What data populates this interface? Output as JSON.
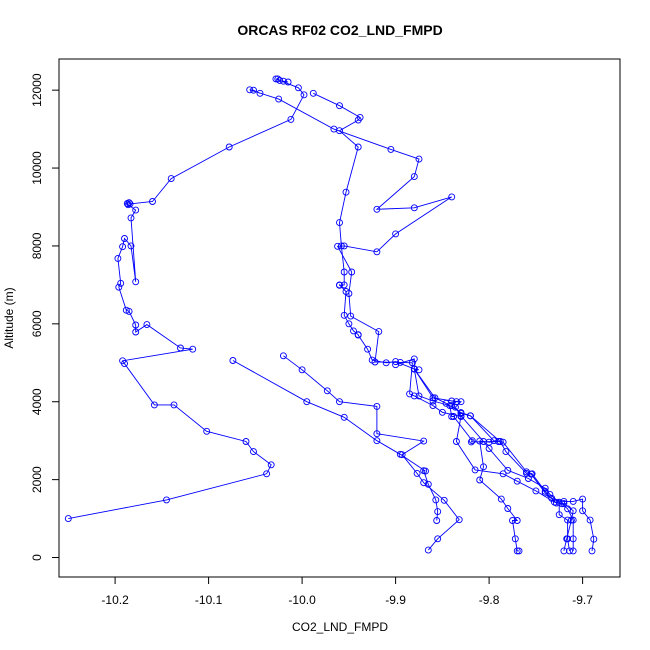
{
  "chart_data": {
    "type": "line",
    "title": "ORCAS RF02 CO2_LND_FMPD",
    "xlabel": "CO2_LND_FMPD",
    "ylabel": "Altitude (m)",
    "xlim": [
      -10.26,
      -9.66
    ],
    "ylim": [
      -500,
      12800
    ],
    "x_ticks": [
      -10.2,
      -10.1,
      -10.0,
      -9.9,
      -9.8,
      -9.7
    ],
    "x_tick_labels": [
      "-10.2",
      "-10.1",
      "-10.0",
      "-9.9",
      "-9.8",
      "-9.7"
    ],
    "y_ticks": [
      0,
      2000,
      4000,
      6000,
      8000,
      10000,
      12000
    ],
    "y_tick_labels": [
      "0",
      "2000",
      "4000",
      "6000",
      "8000",
      "10000",
      "12000"
    ],
    "grid": false,
    "colors": {
      "series": "#0000ff",
      "axis": "#000000"
    },
    "series": [
      {
        "points": [
          [
            -10.25,
            1000
          ],
          [
            -10.145,
            1480
          ],
          [
            -10.038,
            2150
          ],
          [
            -10.033,
            2380
          ],
          [
            -10.052,
            2720
          ],
          [
            -10.06,
            2980
          ],
          [
            -10.102,
            3240
          ],
          [
            -10.137,
            3920
          ],
          [
            -10.158,
            3920
          ],
          [
            -10.19,
            4980
          ],
          [
            -10.192,
            5050
          ],
          [
            -10.117,
            5350
          ],
          [
            -10.13,
            5380
          ],
          [
            -10.166,
            5980
          ],
          [
            -10.178,
            5790
          ],
          [
            -10.178,
            5970
          ],
          [
            -10.185,
            6320
          ],
          [
            -10.188,
            6350
          ],
          [
            -10.196,
            6940
          ],
          [
            -10.194,
            7040
          ],
          [
            -10.197,
            7680
          ],
          [
            -10.192,
            7980
          ],
          [
            -10.19,
            8190
          ],
          [
            -10.183,
            8000
          ],
          [
            -10.178,
            7080
          ],
          [
            -10.183,
            8720
          ],
          [
            -10.178,
            8920
          ],
          [
            -10.186,
            9060
          ],
          [
            -10.187,
            9090
          ],
          [
            -10.185,
            9110
          ],
          [
            -10.184,
            9080
          ],
          [
            -10.16,
            9140
          ],
          [
            -10.14,
            9730
          ],
          [
            -10.078,
            10540
          ],
          [
            -10.012,
            11250
          ],
          [
            -9.998,
            11880
          ],
          [
            -10.004,
            12060
          ],
          [
            -10.028,
            12290
          ],
          [
            -10.026,
            12290
          ],
          [
            -10.024,
            12250
          ],
          [
            -10.02,
            12230
          ],
          [
            -10.015,
            12210
          ]
        ]
      },
      {
        "points": [
          [
            -9.865,
            190
          ],
          [
            -9.855,
            480
          ],
          [
            -9.832,
            970
          ],
          [
            -9.848,
            1470
          ],
          [
            -9.87,
            1920
          ],
          [
            -9.877,
            2160
          ],
          [
            -9.893,
            2640
          ],
          [
            -9.87,
            2990
          ],
          [
            -9.92,
            3180
          ],
          [
            -9.92,
            3880
          ],
          [
            -9.96,
            4000
          ],
          [
            -9.973,
            4280
          ],
          [
            -10.0,
            4820
          ],
          [
            -10.02,
            5180
          ]
        ]
      },
      {
        "points": [
          [
            -9.856,
            950
          ],
          [
            -9.855,
            1180
          ],
          [
            -9.857,
            1480
          ],
          [
            -9.865,
            1880
          ],
          [
            -9.87,
            2230
          ],
          [
            -9.868,
            2220
          ],
          [
            -9.895,
            2650
          ],
          [
            -9.92,
            3000
          ],
          [
            -9.955,
            3600
          ],
          [
            -9.995,
            4000
          ],
          [
            -10.074,
            5060
          ]
        ]
      },
      {
        "points": [
          [
            -9.768,
            170
          ],
          [
            -9.77,
            170
          ],
          [
            -9.772,
            480
          ],
          [
            -9.775,
            950
          ],
          [
            -9.77,
            950
          ],
          [
            -9.78,
            1260
          ],
          [
            -9.787,
            1500
          ],
          [
            -9.81,
            1990
          ],
          [
            -9.806,
            2330
          ],
          [
            -9.81,
            2990
          ],
          [
            -9.8,
            2960
          ],
          [
            -9.79,
            2980
          ],
          [
            -9.819,
            2970
          ],
          [
            -9.818,
            3000
          ],
          [
            -9.838,
            3620
          ],
          [
            -9.84,
            3620
          ],
          [
            -9.842,
            3900
          ],
          [
            -9.86,
            4020
          ],
          [
            -9.875,
            4150
          ],
          [
            -9.88,
            4840
          ],
          [
            -9.9,
            5030
          ],
          [
            -9.91,
            5000
          ],
          [
            -9.925,
            5070
          ],
          [
            -9.93,
            5350
          ],
          [
            -9.94,
            5710
          ],
          [
            -9.94,
            5720
          ],
          [
            -9.945,
            5820
          ],
          [
            -9.95,
            6000
          ],
          [
            -9.955,
            6220
          ],
          [
            -9.953,
            6830
          ],
          [
            -9.96,
            7000
          ],
          [
            -9.96,
            6990
          ],
          [
            -9.955,
            7000
          ],
          [
            -9.955,
            7330
          ],
          [
            -9.958,
            8000
          ],
          [
            -9.96,
            8600
          ],
          [
            -9.953,
            9380
          ],
          [
            -9.94,
            10540
          ],
          [
            -9.96,
            10960
          ],
          [
            -9.94,
            11230
          ],
          [
            -9.938,
            11300
          ],
          [
            -9.96,
            11600
          ],
          [
            -9.988,
            11920
          ]
        ]
      },
      {
        "points": [
          [
            -9.72,
            170
          ],
          [
            -9.717,
            480
          ],
          [
            -9.712,
            960
          ],
          [
            -9.71,
            1200
          ],
          [
            -9.72,
            1390
          ],
          [
            -9.73,
            1420
          ],
          [
            -9.75,
            1710
          ],
          [
            -9.77,
            1960
          ],
          [
            -9.785,
            2150
          ],
          [
            -9.815,
            2250
          ],
          [
            -9.835,
            2980
          ],
          [
            -9.83,
            3620
          ],
          [
            -9.85,
            3730
          ],
          [
            -9.86,
            3900
          ],
          [
            -9.88,
            4150
          ],
          [
            -9.885,
            4200
          ],
          [
            -9.882,
            5000
          ],
          [
            -9.895,
            5010
          ],
          [
            -9.922,
            5020
          ],
          [
            -9.918,
            5800
          ],
          [
            -9.948,
            6200
          ],
          [
            -9.95,
            6780
          ],
          [
            -9.947,
            7330
          ],
          [
            -9.962,
            7990
          ],
          [
            -9.955,
            8000
          ],
          [
            -9.92,
            7850
          ],
          [
            -9.9,
            8310
          ],
          [
            -9.84,
            9260
          ],
          [
            -9.88,
            8980
          ],
          [
            -9.92,
            8940
          ],
          [
            -9.88,
            9780
          ],
          [
            -9.875,
            10230
          ],
          [
            -9.905,
            10480
          ],
          [
            -9.966,
            11000
          ],
          [
            -10.025,
            11770
          ],
          [
            -10.056,
            12010
          ],
          [
            -10.052,
            12000
          ],
          [
            -10.045,
            11920
          ]
        ]
      },
      {
        "points": [
          [
            -9.69,
            170
          ],
          [
            -9.688,
            470
          ],
          [
            -9.692,
            960
          ],
          [
            -9.7,
            1200
          ],
          [
            -9.7,
            1500
          ],
          [
            -9.71,
            1440
          ],
          [
            -9.72,
            1440
          ],
          [
            -9.733,
            1520
          ],
          [
            -9.74,
            1700
          ],
          [
            -9.754,
            2150
          ],
          [
            -9.76,
            2200
          ],
          [
            -9.785,
            2960
          ],
          [
            -9.795,
            3000
          ],
          [
            -9.82,
            3640
          ],
          [
            -9.83,
            3700
          ],
          [
            -9.84,
            3900
          ],
          [
            -9.835,
            4000
          ],
          [
            -9.86,
            4100
          ],
          [
            -9.88,
            4840
          ],
          [
            -9.88,
            5100
          ],
          [
            -9.9,
            4950
          ]
        ]
      },
      {
        "points": [
          [
            -9.71,
            170
          ],
          [
            -9.71,
            480
          ],
          [
            -9.71,
            960
          ],
          [
            -9.716,
            1250
          ],
          [
            -9.722,
            1380
          ],
          [
            -9.728,
            1400
          ],
          [
            -9.74,
            1660
          ],
          [
            -9.755,
            2140
          ],
          [
            -9.76,
            2160
          ],
          [
            -9.782,
            2720
          ],
          [
            -9.788,
            2980
          ],
          [
            -9.82,
            3640
          ],
          [
            -9.83,
            3720
          ],
          [
            -9.846,
            3960
          ],
          [
            -9.858,
            4100
          ],
          [
            -9.88,
            4840
          ],
          [
            -9.875,
            4820
          ]
        ]
      },
      {
        "points": [
          [
            -9.714,
            170
          ],
          [
            -9.716,
            480
          ],
          [
            -9.716,
            960
          ],
          [
            -9.725,
            1100
          ],
          [
            -9.725,
            1420
          ],
          [
            -9.735,
            1620
          ],
          [
            -9.74,
            1780
          ],
          [
            -9.758,
            2030
          ],
          [
            -9.78,
            2240
          ],
          [
            -9.8,
            2800
          ],
          [
            -9.806,
            2980
          ],
          [
            -9.83,
            3640
          ],
          [
            -9.836,
            3860
          ],
          [
            -9.83,
            4000
          ],
          [
            -9.84,
            4020
          ]
        ]
      }
    ]
  }
}
